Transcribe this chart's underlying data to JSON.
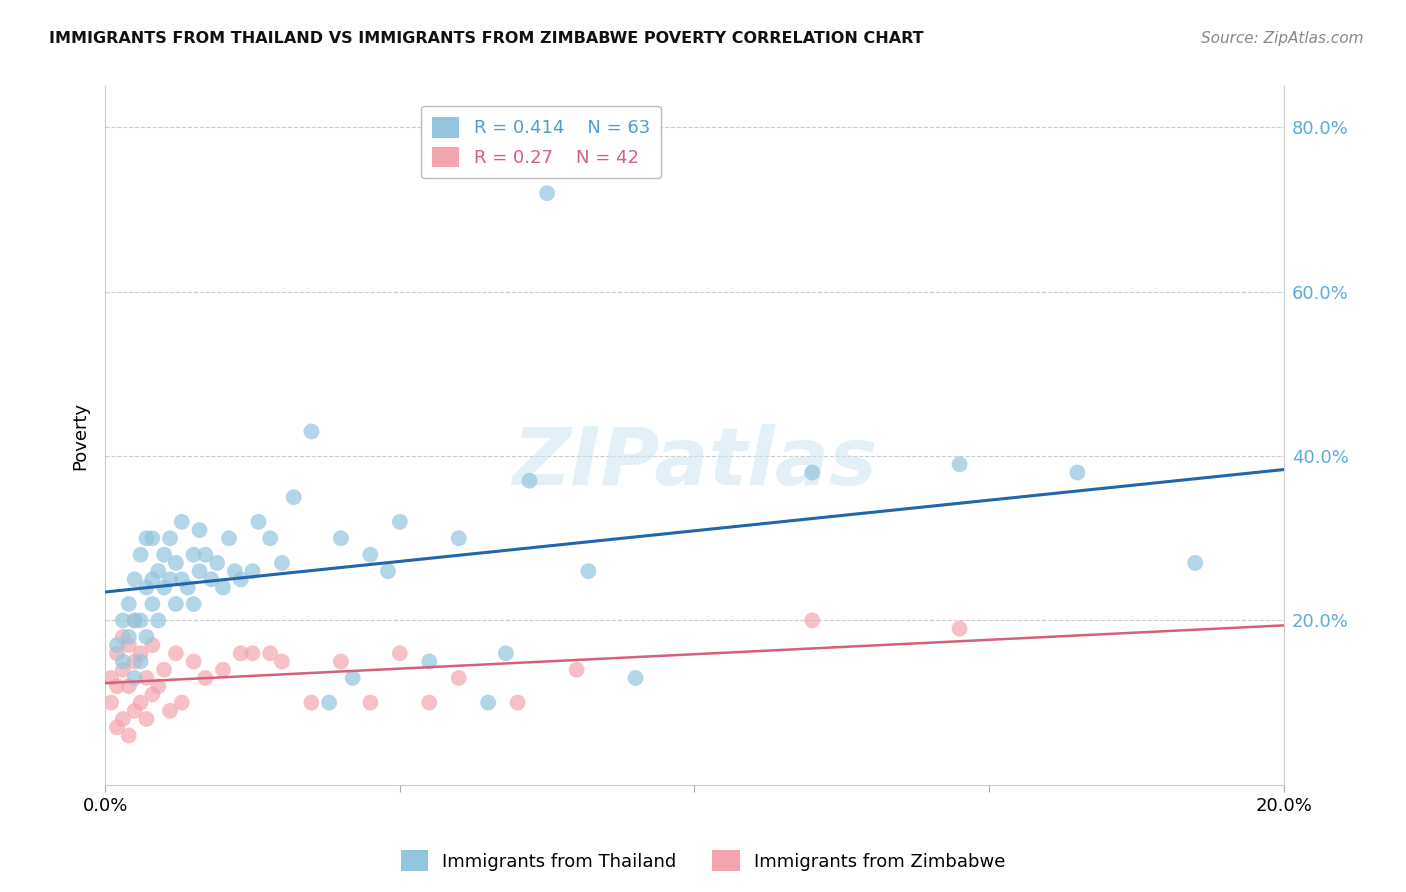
{
  "title": "IMMIGRANTS FROM THAILAND VS IMMIGRANTS FROM ZIMBABWE POVERTY CORRELATION CHART",
  "source": "Source: ZipAtlas.com",
  "ylabel": "Poverty",
  "ytick_labels": [
    "80.0%",
    "60.0%",
    "40.0%",
    "20.0%"
  ],
  "ytick_values": [
    0.8,
    0.6,
    0.4,
    0.2
  ],
  "xlim": [
    0.0,
    0.2
  ],
  "ylim": [
    0.0,
    0.85
  ],
  "watermark_zip": "ZIP",
  "watermark_atlas": "atlas",
  "legend_thailand": "Immigrants from Thailand",
  "legend_zimbabwe": "Immigrants from Zimbabwe",
  "R_thailand": 0.414,
  "N_thailand": 63,
  "R_zimbabwe": 0.27,
  "N_zimbabwe": 42,
  "color_thailand": "#92c5de",
  "color_zimbabwe": "#f4a6b0",
  "line_color_thailand": "#2166ac",
  "line_color_zimbabwe": "#d6607a",
  "background_color": "#ffffff",
  "thailand_x": [
    0.002,
    0.003,
    0.003,
    0.004,
    0.004,
    0.005,
    0.005,
    0.005,
    0.006,
    0.006,
    0.006,
    0.007,
    0.007,
    0.007,
    0.008,
    0.008,
    0.008,
    0.009,
    0.009,
    0.01,
    0.01,
    0.011,
    0.011,
    0.012,
    0.012,
    0.013,
    0.013,
    0.014,
    0.015,
    0.015,
    0.016,
    0.016,
    0.017,
    0.018,
    0.019,
    0.02,
    0.021,
    0.022,
    0.023,
    0.025,
    0.026,
    0.028,
    0.03,
    0.032,
    0.035,
    0.038,
    0.04,
    0.042,
    0.045,
    0.048,
    0.05,
    0.055,
    0.06,
    0.065,
    0.068,
    0.072,
    0.075,
    0.082,
    0.09,
    0.12,
    0.145,
    0.165,
    0.185
  ],
  "thailand_y": [
    0.17,
    0.2,
    0.15,
    0.18,
    0.22,
    0.13,
    0.2,
    0.25,
    0.15,
    0.28,
    0.2,
    0.3,
    0.24,
    0.18,
    0.25,
    0.3,
    0.22,
    0.26,
    0.2,
    0.24,
    0.28,
    0.25,
    0.3,
    0.22,
    0.27,
    0.25,
    0.32,
    0.24,
    0.22,
    0.28,
    0.26,
    0.31,
    0.28,
    0.25,
    0.27,
    0.24,
    0.3,
    0.26,
    0.25,
    0.26,
    0.32,
    0.3,
    0.27,
    0.35,
    0.43,
    0.1,
    0.3,
    0.13,
    0.28,
    0.26,
    0.32,
    0.15,
    0.3,
    0.1,
    0.16,
    0.37,
    0.72,
    0.26,
    0.13,
    0.38,
    0.39,
    0.38,
    0.27
  ],
  "zimbabwe_x": [
    0.001,
    0.001,
    0.002,
    0.002,
    0.002,
    0.003,
    0.003,
    0.003,
    0.004,
    0.004,
    0.004,
    0.005,
    0.005,
    0.005,
    0.006,
    0.006,
    0.007,
    0.007,
    0.008,
    0.008,
    0.009,
    0.01,
    0.011,
    0.012,
    0.013,
    0.015,
    0.017,
    0.02,
    0.023,
    0.025,
    0.028,
    0.03,
    0.035,
    0.04,
    0.045,
    0.05,
    0.055,
    0.06,
    0.07,
    0.08,
    0.12,
    0.145
  ],
  "zimbabwe_y": [
    0.1,
    0.13,
    0.07,
    0.12,
    0.16,
    0.08,
    0.14,
    0.18,
    0.06,
    0.12,
    0.17,
    0.09,
    0.15,
    0.2,
    0.1,
    0.16,
    0.08,
    0.13,
    0.11,
    0.17,
    0.12,
    0.14,
    0.09,
    0.16,
    0.1,
    0.15,
    0.13,
    0.14,
    0.16,
    0.16,
    0.16,
    0.15,
    0.1,
    0.15,
    0.1,
    0.16,
    0.1,
    0.13,
    0.1,
    0.14,
    0.2,
    0.19
  ]
}
